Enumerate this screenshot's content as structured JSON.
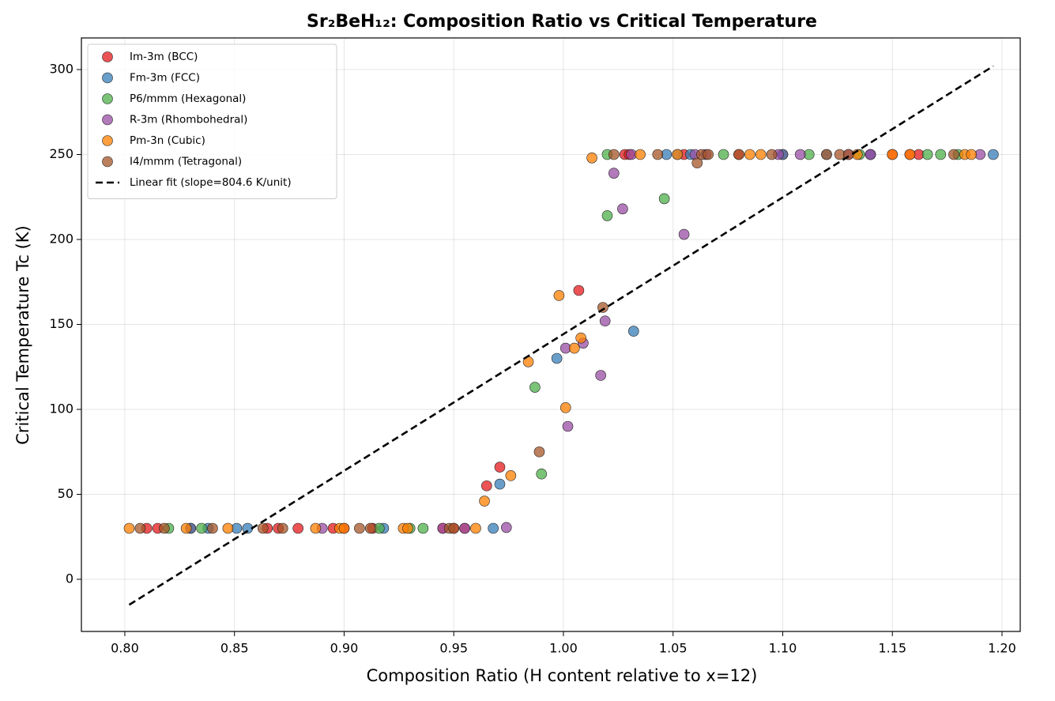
{
  "chart_data": {
    "type": "scatter",
    "title": "Sr₂BeH₁₂: Composition Ratio vs Critical Temperature",
    "xlabel": "Composition Ratio (H content relative to x=12)",
    "ylabel": "Critical Temperature Tc (K)",
    "xlim": [
      0.7802,
      1.2083
    ],
    "ylim": [
      -30.7,
      318.6
    ],
    "xticks": [
      {
        "value": 0.8,
        "label": "0.80"
      },
      {
        "value": 0.85,
        "label": "0.85"
      },
      {
        "value": 0.9,
        "label": "0.90"
      },
      {
        "value": 0.95,
        "label": "0.95"
      },
      {
        "value": 1.0,
        "label": "1.00"
      },
      {
        "value": 1.05,
        "label": "1.05"
      },
      {
        "value": 1.1,
        "label": "1.10"
      },
      {
        "value": 1.15,
        "label": "1.15"
      },
      {
        "value": 1.2,
        "label": "1.20"
      }
    ],
    "yticks": [
      0,
      50,
      100,
      150,
      200,
      250,
      300
    ],
    "grid": true,
    "legend": "upper left",
    "series": [
      {
        "name": "Im-3m (BCC)",
        "color": "#e41a1c",
        "x": [
          0.81,
          0.815,
          0.83,
          0.865,
          0.87,
          0.879,
          0.895,
          0.9,
          0.913,
          0.945,
          0.95,
          0.955,
          0.965,
          0.971,
          1.007,
          1.028,
          1.03,
          1.055,
          1.08,
          1.1,
          1.14,
          1.15,
          1.158,
          1.162
        ],
        "values": [
          30,
          30,
          30,
          30,
          30,
          30,
          30,
          30,
          30,
          30,
          30,
          30,
          55,
          66,
          170,
          250,
          250,
          250,
          250,
          250,
          250,
          250,
          250,
          250
        ]
      },
      {
        "name": "Fm-3m (FCC)",
        "color": "#377eb8",
        "x": [
          0.83,
          0.838,
          0.851,
          0.856,
          0.918,
          0.968,
          0.971,
          0.997,
          1.032,
          1.047,
          1.052,
          1.058,
          1.1,
          1.12,
          1.14,
          1.196
        ],
        "values": [
          30,
          30,
          30,
          30,
          30,
          30,
          56,
          130,
          146,
          250,
          250,
          250,
          250,
          250,
          250,
          250
        ]
      },
      {
        "name": "P6/mmm (Hexagonal)",
        "color": "#4daf4a",
        "x": [
          0.82,
          0.835,
          0.916,
          0.93,
          0.936,
          0.987,
          0.99,
          1.02,
          1.046,
          1.02,
          1.073,
          1.112,
          1.135,
          1.166,
          1.172,
          1.18
        ],
        "values": [
          30,
          30,
          30,
          30,
          30,
          113,
          62,
          214,
          224,
          250,
          250,
          250,
          250,
          250,
          250,
          250
        ]
      },
      {
        "name": "R-3m (Rhombohedral)",
        "color": "#984ea3",
        "x": [
          0.89,
          0.945,
          0.955,
          0.974,
          1.001,
          1.002,
          1.009,
          1.017,
          1.019,
          1.023,
          1.027,
          1.055,
          1.031,
          1.06,
          1.065,
          1.098,
          1.108,
          1.13,
          1.14,
          1.19
        ],
        "values": [
          30,
          30,
          30,
          30.5,
          136,
          90,
          139,
          120,
          152,
          239,
          218,
          203,
          250,
          250,
          250,
          250,
          250,
          250,
          250,
          250
        ]
      },
      {
        "name": "Pm-3n (Cubic)",
        "color": "#ff7f00",
        "x": [
          0.802,
          0.828,
          0.847,
          0.887,
          0.898,
          0.9,
          0.927,
          0.929,
          0.96,
          0.964,
          0.976,
          0.984,
          0.998,
          1.001,
          1.005,
          1.008,
          1.013,
          1.035,
          1.052,
          1.085,
          1.09,
          1.134,
          1.15,
          1.158,
          1.183,
          1.186
        ],
        "values": [
          30,
          30,
          30,
          30,
          30,
          30,
          30,
          30,
          30,
          46,
          61,
          128,
          167,
          101,
          136,
          142,
          248,
          250,
          250,
          250,
          250,
          250,
          250,
          250,
          250,
          250
        ]
      },
      {
        "name": "I4/mmm (Tetragonal)",
        "color": "#a65628",
        "x": [
          0.807,
          0.818,
          0.84,
          0.863,
          0.872,
          0.907,
          0.912,
          0.948,
          0.95,
          0.989,
          1.018,
          1.061,
          1.023,
          1.043,
          1.063,
          1.066,
          1.08,
          1.095,
          1.12,
          1.126,
          1.13,
          1.178
        ],
        "values": [
          30,
          30,
          30,
          30,
          30,
          30,
          30,
          30,
          30,
          75,
          160,
          245,
          250,
          250,
          250,
          250,
          250,
          250,
          250,
          250,
          250,
          250
        ]
      },
      {
        "name": "Linear fit (slope=804.6 K/unit)",
        "type": "line",
        "color": "#000000",
        "x": [
          0.802,
          1.196
        ],
        "values": [
          -15,
          302
        ]
      }
    ]
  }
}
